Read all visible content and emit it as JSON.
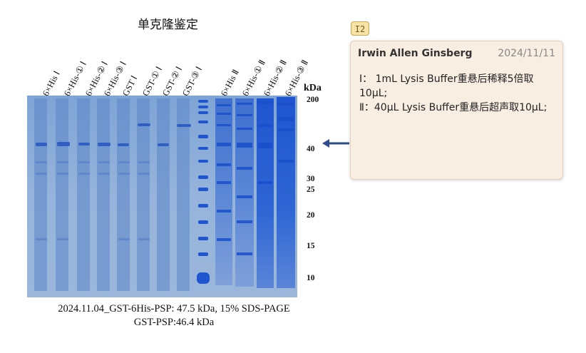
{
  "title": "单克隆鉴定",
  "lanes": [
    "6×His Ⅰ",
    "6×His-① Ⅰ",
    "6×His-② Ⅰ",
    "6×His-③ Ⅰ",
    "GST Ⅰ",
    "GST-① Ⅰ",
    "GST-② Ⅰ",
    "GST-③ Ⅰ",
    "6×His Ⅱ",
    "6×His-① Ⅱ",
    "6×His-② Ⅱ",
    "6×His-③ Ⅱ"
  ],
  "kda_label": "kDa",
  "markers": [
    "200",
    "40",
    "30",
    "25",
    "20",
    "15",
    "10"
  ],
  "caption": {
    "line1": "2024.11.04_GST-6His-PSP: 47.5 kDa, 15% SDS-PAGE",
    "line2": "GST-PSP:46.4 kDa"
  },
  "annotation": {
    "tag": "I2",
    "author": "Irwin Allen Ginsberg",
    "date": "2024/11/11",
    "lines": [
      "Ⅰ： 1mL Lysis Buffer重悬后稀释5倍取10μL;",
      "Ⅱ：40μL Lysis Buffer重悬后超声取10μL;"
    ]
  },
  "colors": {
    "gel_background": "#8fb0d9",
    "band": "#2f5fc4",
    "arrow": "#2e4a8a",
    "note_background": "#f9eee2"
  }
}
